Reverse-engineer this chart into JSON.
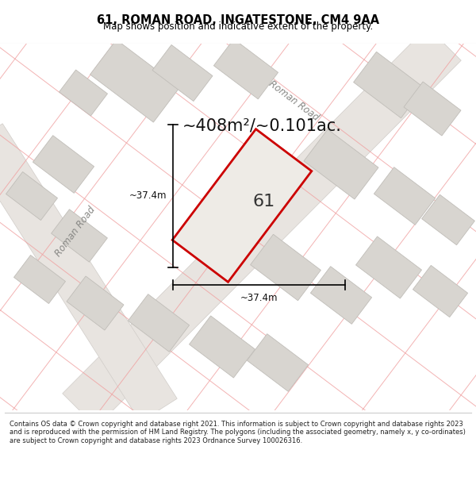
{
  "title_line1": "61, ROMAN ROAD, INGATESTONE, CM4 9AA",
  "title_line2": "Map shows position and indicative extent of the property.",
  "area_text": "~408m²/~0.101ac.",
  "property_number": "61",
  "dim_vertical": "~37.4m",
  "dim_horizontal": "~37.4m",
  "footer_text": "Contains OS data © Crown copyright and database right 2021. This information is subject to Crown copyright and database rights 2023 and is reproduced with the permission of HM Land Registry. The polygons (including the associated geometry, namely x, y co-ordinates) are subject to Crown copyright and database rights 2023 Ordnance Survey 100026316.",
  "bg_color": "#f5f3f0",
  "map_bg": "#f5f3f0",
  "property_fill": "#eeebe6",
  "property_edge": "#cc0000",
  "road_label1": "Roman Road",
  "road_label2": "Roman Road",
  "footer_bg": "white",
  "title_bg": "white",
  "plot_line_color": "#f0a0a0",
  "building_fill": "#d8d5d0",
  "building_edge": "#c0bdb8",
  "road_fill": "#e8e4e0",
  "road_edge": "#d0ccc8"
}
